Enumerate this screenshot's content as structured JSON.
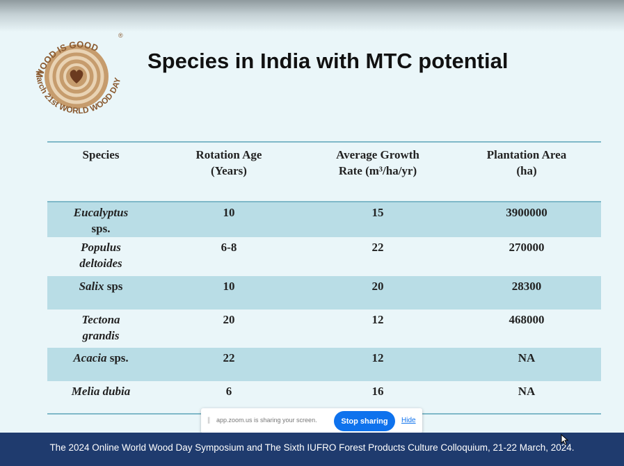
{
  "slide": {
    "title": "Species in India with MTC potential",
    "logo": {
      "top_text": "WOOD IS GOOD",
      "registered_mark": "®",
      "bottom_text": "March 21st WORLD WOOD DAY"
    },
    "table": {
      "headers": [
        {
          "line1": "Species",
          "line2": ""
        },
        {
          "line1": "Rotation  Age",
          "line2": "(Years)"
        },
        {
          "line1": "Average Growth",
          "line2": "Rate (m³/ha/yr)"
        },
        {
          "line1": "Plantation Area",
          "line2": "(ha)"
        }
      ],
      "rows": [
        {
          "species_line1": "Eucalyptus",
          "species_line2": "sps.",
          "rotation_age": "10",
          "growth_rate": "15",
          "plantation_area": "3900000"
        },
        {
          "species_line1": "Populus",
          "species_line2": "deltoides",
          "rotation_age": "6-8",
          "growth_rate": "22",
          "plantation_area": "270000"
        },
        {
          "species_line1": "Salix",
          "species_line2": "sps",
          "rotation_age": "10",
          "growth_rate": "20",
          "plantation_area": "28300"
        },
        {
          "species_line1": "Tectona",
          "species_line2": "grandis",
          "rotation_age": "20",
          "growth_rate": "12",
          "plantation_area": "468000"
        },
        {
          "species_line1": "Acacia",
          "species_line2": "sps.",
          "rotation_age": "22",
          "growth_rate": "12",
          "plantation_area": "NA"
        },
        {
          "species_line1": "Melia dubia",
          "species_line2": "",
          "rotation_age": "6",
          "growth_rate": "16",
          "plantation_area": "NA"
        }
      ]
    }
  },
  "share_bar": {
    "grip_icon": "drag-grip-icon",
    "message": "app.zoom.us is sharing your screen.",
    "stop_label": "Stop sharing",
    "hide_label": "Hide"
  },
  "footer": {
    "text": "The 2024 Online World Wood Day Symposium and The Sixth IUFRO Forest Products Culture Colloquium, 21-22 March, 2024."
  },
  "colors": {
    "background": "#eaf6f9",
    "row_shade": "#b9dde6",
    "footer": "#1f3b6e",
    "button": "#0e72ed",
    "logo_wood": "#c69c6d"
  }
}
